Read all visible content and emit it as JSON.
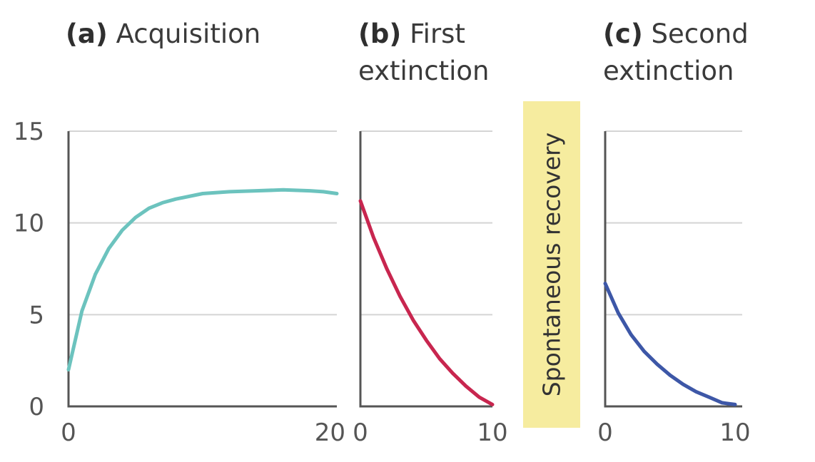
{
  "chart_data": [
    {
      "type": "line",
      "panel_tag": "(a)",
      "title": "Acquisition",
      "xlabel": "",
      "ylabel": "",
      "xlim": [
        0,
        20
      ],
      "ylim": [
        0,
        15
      ],
      "xticks": [
        "0",
        "20"
      ],
      "yticks": [
        "0",
        "5",
        "10",
        "15"
      ],
      "grid": true,
      "series": [
        {
          "color": "#6cc3be",
          "x": [
            0,
            1,
            2,
            3,
            4,
            5,
            6,
            7,
            8,
            10,
            12,
            14,
            16,
            18,
            19,
            20
          ],
          "y": [
            2.0,
            5.2,
            7.2,
            8.6,
            9.6,
            10.3,
            10.8,
            11.1,
            11.3,
            11.6,
            11.7,
            11.75,
            11.8,
            11.75,
            11.7,
            11.6
          ]
        }
      ]
    },
    {
      "type": "line",
      "panel_tag": "(b)",
      "title": "First",
      "title_line2": "extinction",
      "xlabel": "",
      "ylabel": "",
      "xlim": [
        0,
        10
      ],
      "ylim": [
        0,
        15
      ],
      "xticks": [
        "0",
        "10"
      ],
      "grid": true,
      "series": [
        {
          "color": "#c8264f",
          "x": [
            0,
            1,
            2,
            3,
            4,
            5,
            6,
            7,
            8,
            9,
            10
          ],
          "y": [
            11.2,
            9.2,
            7.5,
            6.0,
            4.7,
            3.6,
            2.6,
            1.8,
            1.1,
            0.5,
            0.1
          ]
        }
      ]
    },
    {
      "type": "line",
      "panel_tag": "(c)",
      "title": "Second",
      "title_line2": "extinction",
      "xlabel": "",
      "ylabel": "",
      "xlim": [
        0,
        10
      ],
      "ylim": [
        0,
        15
      ],
      "xticks": [
        "0",
        "10"
      ],
      "grid": true,
      "series": [
        {
          "color": "#3d57a7",
          "x": [
            0,
            1,
            2,
            3,
            4,
            5,
            6,
            7,
            8,
            9,
            10
          ],
          "y": [
            6.7,
            5.1,
            3.9,
            3.0,
            2.3,
            1.7,
            1.2,
            0.8,
            0.5,
            0.2,
            0.1
          ]
        }
      ]
    }
  ],
  "annotations": {
    "recovery_label": "Spontaneous recovery",
    "recovery_color": "#f6ec9f"
  }
}
